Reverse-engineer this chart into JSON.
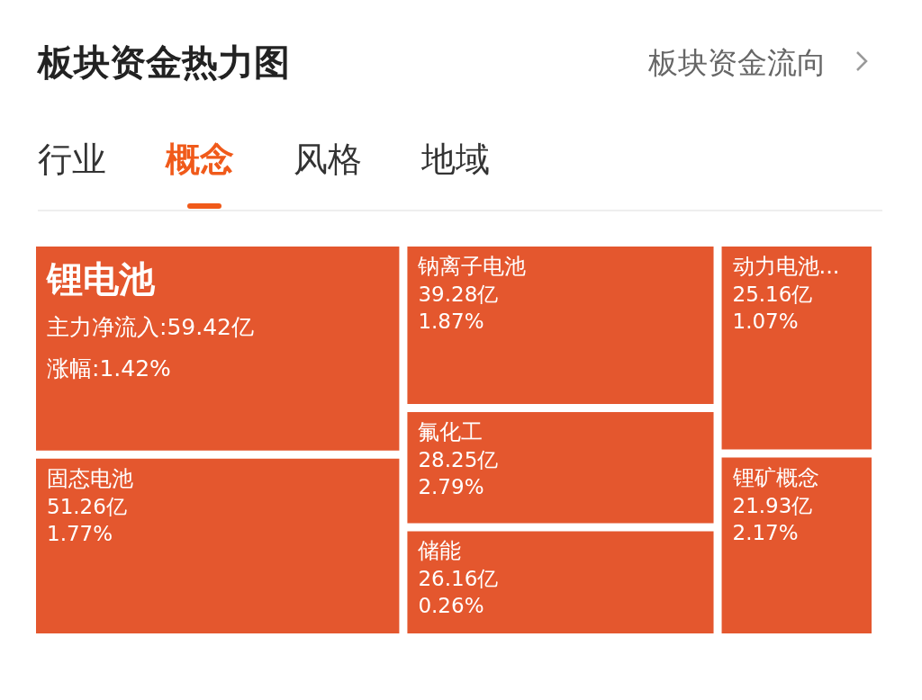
{
  "chart_data": {
    "type": "other",
    "title": "板块资金热力图",
    "subtitle": "板块资金流向",
    "annotations": [
      "行业",
      "概念",
      "风格",
      "地域"
    ],
    "categories": [
      "锂电池",
      "固态电池",
      "钠离子电池",
      "氟化工",
      "储能",
      "动力电池...",
      "锂矿概念"
    ],
    "series": [
      {
        "values": [
          59.42,
          51.26,
          39.28,
          28.25,
          26.16,
          25.16,
          21.93
        ],
        "value_labels": [
          "主力净流入:59.42亿",
          "51.26亿",
          "39.28亿",
          "28.25亿",
          "26.16亿",
          "25.16亿",
          "21.93亿"
        ]
      },
      {
        "values": [
          1.42,
          1.77,
          1.87,
          2.79,
          0.26,
          1.07,
          2.17
        ],
        "value_labels": [
          "涨幅:1.42%",
          "1.77%",
          "1.87%",
          "2.79%",
          "0.26%",
          "1.07%",
          "2.17%"
        ]
      }
    ],
    "color": "#e4572e"
  }
}
